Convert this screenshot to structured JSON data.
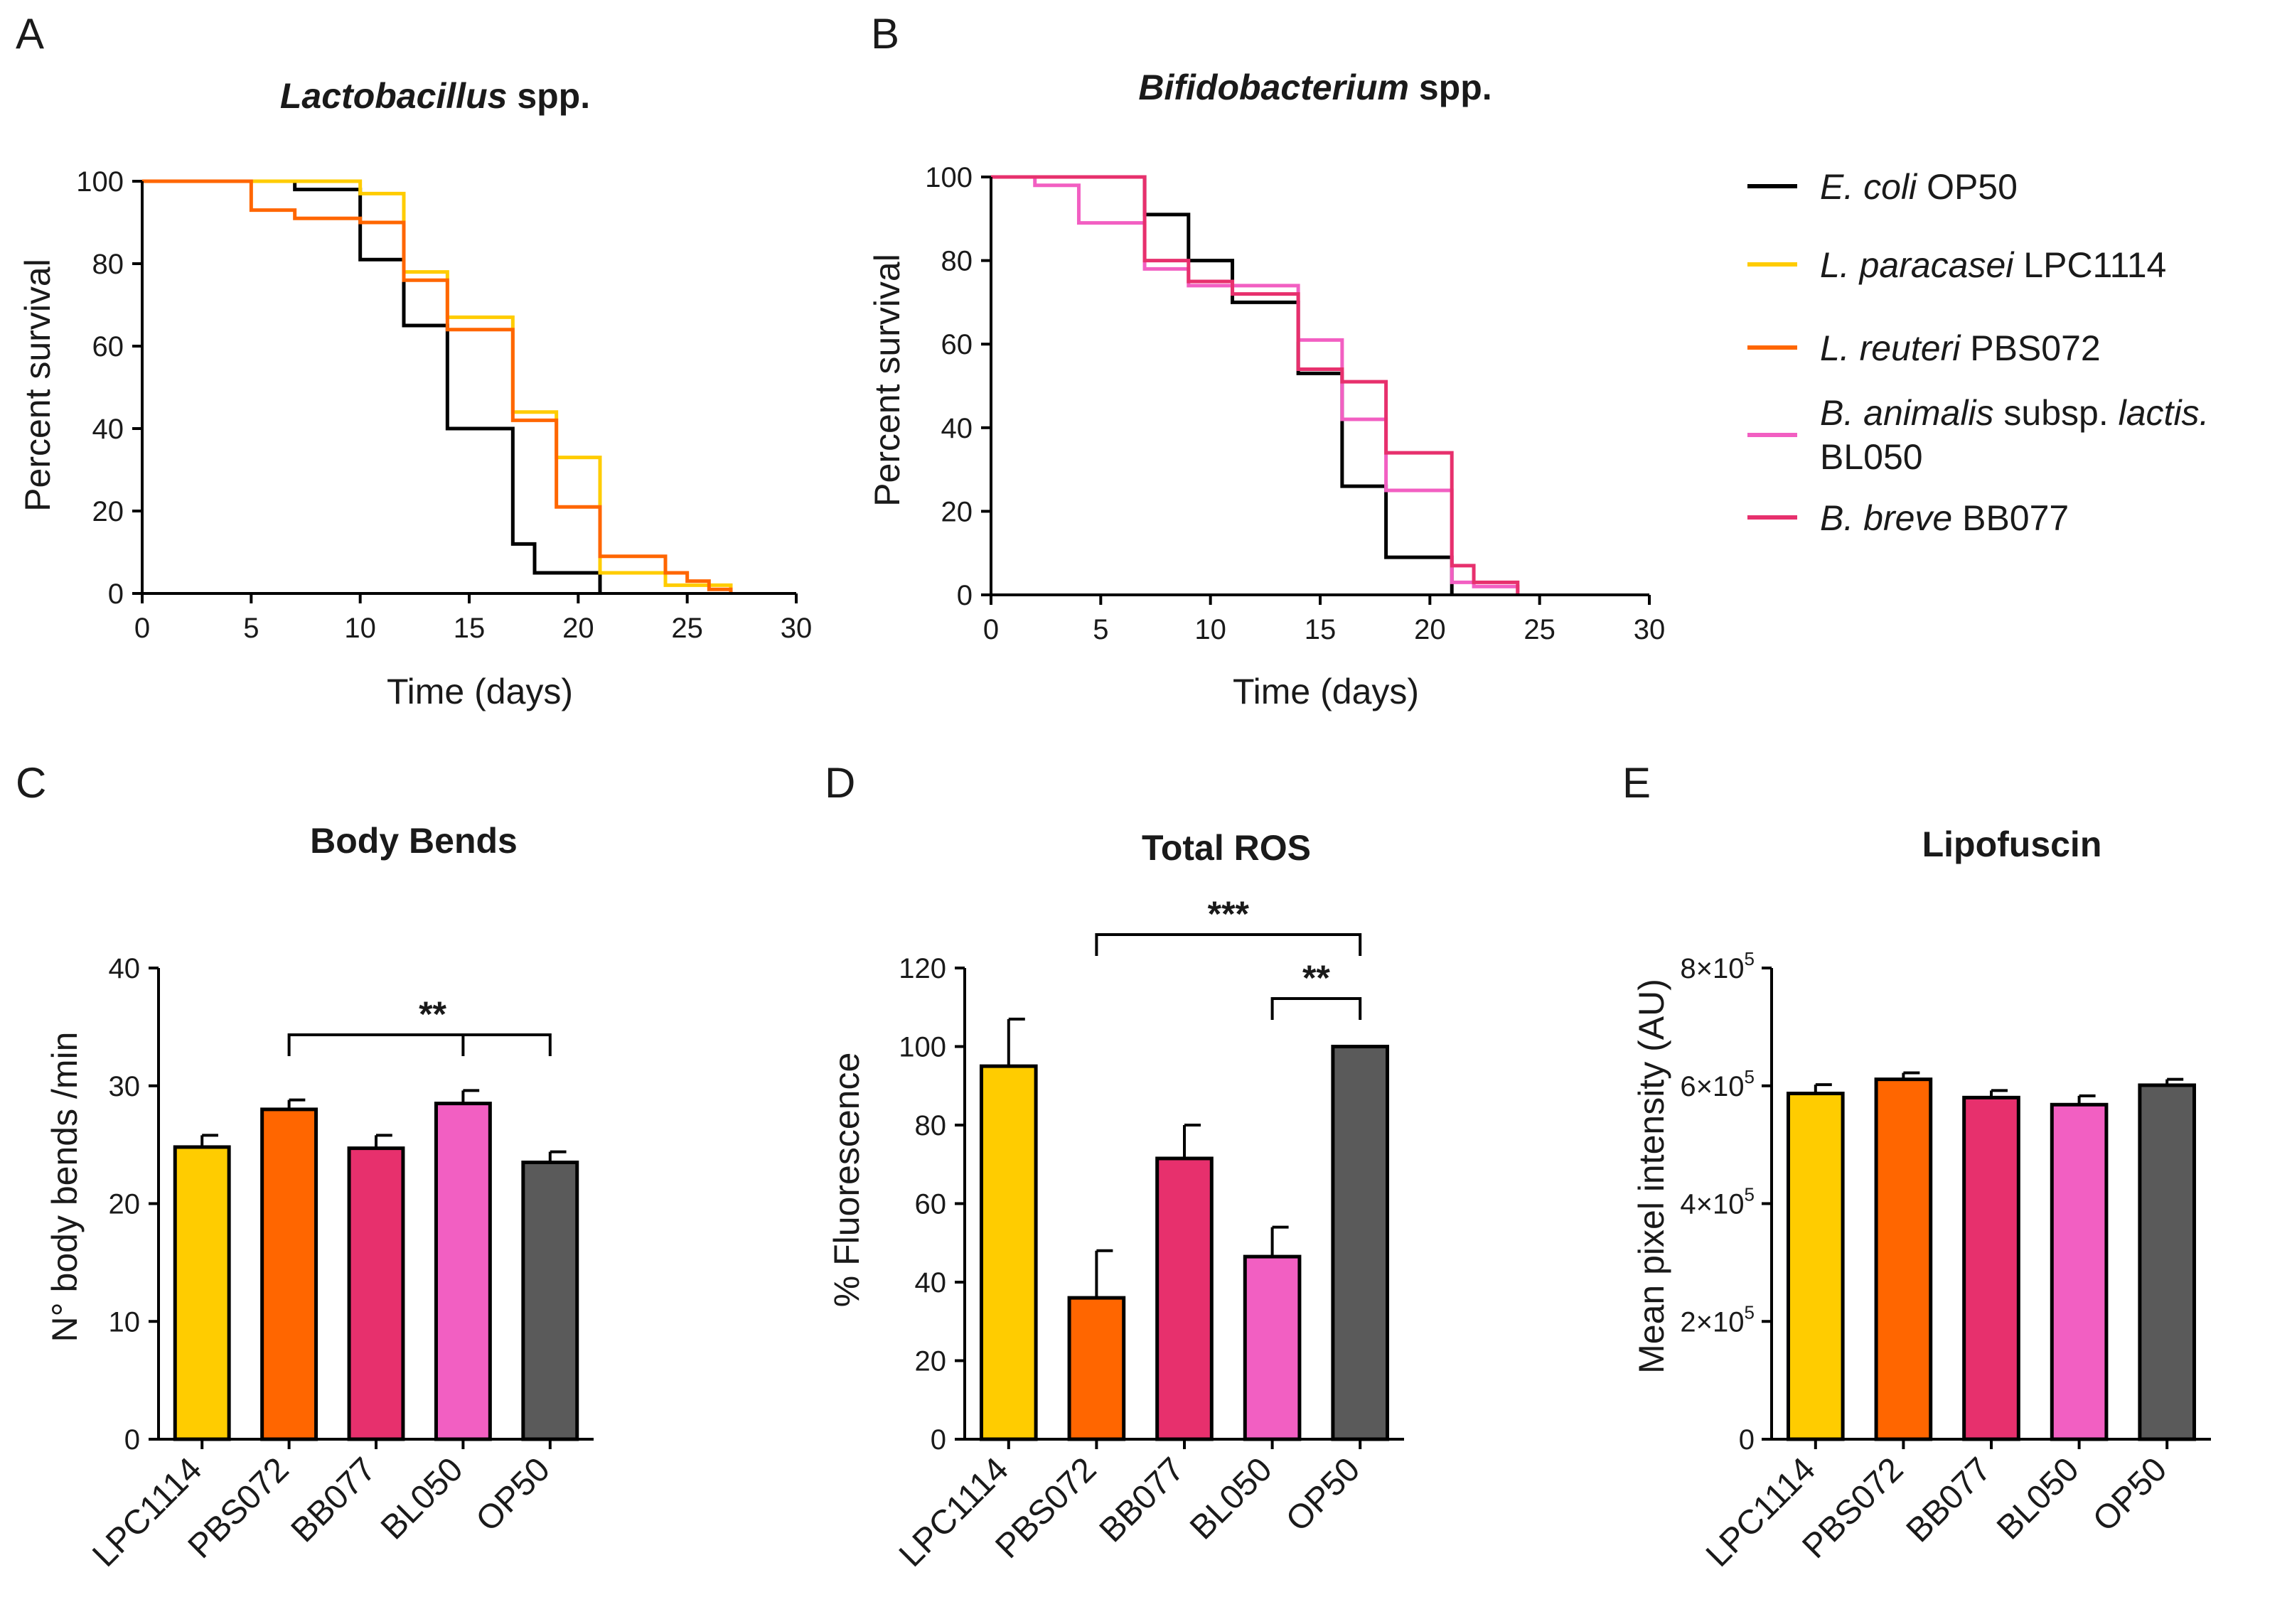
{
  "colors": {
    "OP50": "#000000",
    "LPC1114": "#FFCC00",
    "PBS072": "#FF6600",
    "BL050": "#F25FC2",
    "BB077": "#E7306D",
    "bar_OP50": "#5A5A5A",
    "bar_LPC1114": "#FFCC00",
    "bar_PBS072": "#FF6600",
    "bar_BB077": "#E7306D",
    "bar_BL050": "#F25FC2"
  },
  "legend": {
    "items": [
      {
        "key": "OP50",
        "italic": "E. coli",
        "rest": " OP50",
        "line2": ""
      },
      {
        "key": "LPC1114",
        "italic": "L. paracasei",
        "rest": " LPC1114",
        "line2": ""
      },
      {
        "key": "PBS072",
        "italic": "L. reuteri",
        "rest": " PBS072",
        "line2": ""
      },
      {
        "key": "BL050",
        "italic": "B. animalis",
        "rest": " subsp. ",
        "italic2": "lactis.",
        "line2": "BL050"
      },
      {
        "key": "BB077",
        "italic": "B. breve",
        "rest": " BB077",
        "line2": ""
      }
    ]
  },
  "chart_data": [
    {
      "panel": "A",
      "type": "line",
      "title_italic": "Lactobacillus",
      "title_rest": " spp.",
      "xlabel": "Time (days)",
      "ylabel": "Percent survival",
      "xlim": [
        0,
        30
      ],
      "ylim": [
        0,
        100
      ],
      "xticks": [
        0,
        5,
        10,
        15,
        20,
        25,
        30
      ],
      "yticks": [
        0,
        20,
        40,
        60,
        80,
        100
      ],
      "series": [
        {
          "name": "E. coli OP50",
          "key": "OP50",
          "x": [
            0,
            7,
            10,
            12,
            14,
            17,
            18,
            21
          ],
          "y": [
            100,
            98,
            81,
            65,
            40,
            12,
            5,
            0
          ]
        },
        {
          "name": "L. paracasei LPC1114",
          "key": "LPC1114",
          "x": [
            0,
            8,
            10,
            12,
            14,
            17,
            19,
            21,
            24,
            27
          ],
          "y": [
            100,
            100,
            97,
            78,
            67,
            44,
            33,
            5,
            2,
            0
          ]
        },
        {
          "name": "L. reuteri PBS072",
          "key": "PBS072",
          "x": [
            0,
            5,
            7,
            10,
            12,
            14,
            17,
            19,
            21,
            24,
            25,
            26,
            27
          ],
          "y": [
            100,
            93,
            91,
            90,
            76,
            64,
            42,
            21,
            9,
            5,
            3,
            1,
            0
          ]
        }
      ]
    },
    {
      "panel": "B",
      "type": "line",
      "title_italic": "Bifidobacterium",
      "title_rest": " spp.",
      "xlabel": "Time (days)",
      "ylabel": "Percent survival",
      "xlim": [
        0,
        30
      ],
      "ylim": [
        0,
        100
      ],
      "xticks": [
        0,
        5,
        10,
        15,
        20,
        25,
        30
      ],
      "yticks": [
        0,
        20,
        40,
        60,
        80,
        100
      ],
      "series": [
        {
          "name": "E. coli OP50",
          "key": "OP50",
          "x": [
            0,
            7,
            9,
            11,
            14,
            16,
            18,
            21
          ],
          "y": [
            100,
            91,
            80,
            70,
            53,
            26,
            9,
            0
          ]
        },
        {
          "name": "B. animalis subsp. lactis. BL050",
          "key": "BL050",
          "x": [
            0,
            2,
            4,
            7,
            9,
            11,
            14,
            16,
            18,
            21,
            22,
            24
          ],
          "y": [
            100,
            98,
            89,
            78,
            74,
            74,
            61,
            42,
            25,
            3,
            2,
            0
          ]
        },
        {
          "name": "B. breve BB077",
          "key": "BB077",
          "x": [
            0,
            7,
            9,
            11,
            14,
            16,
            18,
            21,
            22,
            24
          ],
          "y": [
            100,
            80,
            75,
            72,
            54,
            51,
            34,
            7,
            3,
            0
          ]
        }
      ]
    },
    {
      "panel": "C",
      "type": "bar",
      "title": "Body Bends",
      "ylabel": "N° body bends /min",
      "categories": [
        "LPC1114",
        "PBS072",
        "BB077",
        "BL050",
        "OP50"
      ],
      "values": [
        24.8,
        28.0,
        24.7,
        28.5,
        23.5
      ],
      "errors": [
        1.0,
        0.8,
        1.1,
        1.1,
        0.9
      ],
      "ylim": [
        0,
        40
      ],
      "yticks": [
        0,
        10,
        20,
        30,
        40
      ],
      "significance": [
        {
          "from": "PBS072",
          "to": "OP50",
          "mid": "BL050",
          "label": "**"
        }
      ]
    },
    {
      "panel": "D",
      "type": "bar",
      "title": "Total ROS",
      "ylabel": "% Fluorescence",
      "categories": [
        "LPC1114",
        "PBS072",
        "BB077",
        "BL050",
        "OP50"
      ],
      "values": [
        95,
        36,
        71.5,
        46.5,
        100
      ],
      "errors": [
        12,
        12,
        8.5,
        7.5,
        0
      ],
      "ylim": [
        0,
        120
      ],
      "yticks": [
        0,
        20,
        40,
        60,
        80,
        100,
        120
      ],
      "significance": [
        {
          "from": "PBS072",
          "to": "OP50",
          "label": "***"
        },
        {
          "from": "BL050",
          "to": "OP50",
          "label": "**"
        }
      ]
    },
    {
      "panel": "E",
      "type": "bar",
      "title": "Lipofuscin",
      "ylabel": "Mean pixel intensity (AU)",
      "categories": [
        "LPC1114",
        "PBS072",
        "BB077",
        "BL050",
        "OP50"
      ],
      "values": [
        587000,
        611000,
        580000,
        568000,
        601000
      ],
      "errors": [
        15000,
        11000,
        12000,
        15000,
        10000
      ],
      "ylim": [
        0,
        800000
      ],
      "yticks": [
        0,
        200000,
        400000,
        600000,
        800000
      ],
      "ytick_labels": [
        {
          "mant": "0",
          "exp": ""
        },
        {
          "mant": "2×10",
          "exp": "5"
        },
        {
          "mant": "4×10",
          "exp": "5"
        },
        {
          "mant": "6×10",
          "exp": "5"
        },
        {
          "mant": "8×10",
          "exp": "5"
        }
      ]
    }
  ]
}
